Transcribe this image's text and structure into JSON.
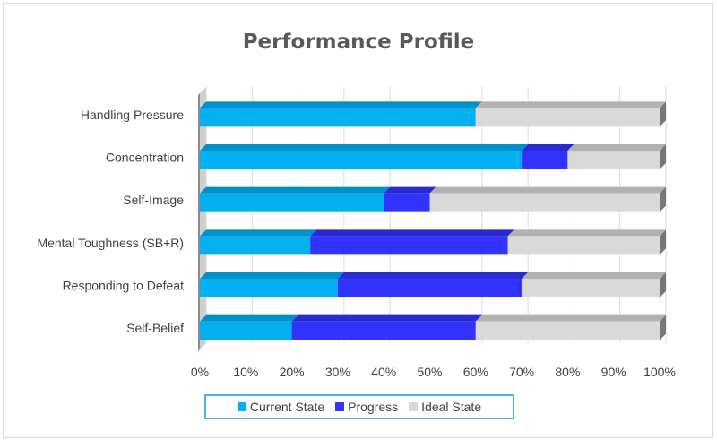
{
  "chart_data": {
    "type": "bar",
    "orientation": "horizontal",
    "stacked": true,
    "percent_stacked": true,
    "title": "Performance Profile",
    "categories": [
      "Handling Pressure",
      "Concentration",
      "Self-Image",
      "Mental Toughness (SB+R)",
      "Responding to Defeat",
      "Self-Belief"
    ],
    "series": [
      {
        "name": "Current State",
        "color": "#00b0f0",
        "values": [
          60,
          70,
          40,
          24,
          30,
          20
        ]
      },
      {
        "name": "Progress",
        "color": "#3333ff",
        "values": [
          0,
          10,
          10,
          43,
          40,
          40
        ]
      },
      {
        "name": "Ideal State",
        "color": "#d9d9d9",
        "values": [
          40,
          20,
          50,
          33,
          30,
          40
        ]
      }
    ],
    "x_ticks": [
      "0%",
      "10%",
      "20%",
      "30%",
      "40%",
      "50%",
      "60%",
      "70%",
      "80%",
      "90%",
      "100%"
    ],
    "xlim": [
      0,
      100
    ],
    "grid": true,
    "legend_position": "bottom"
  }
}
